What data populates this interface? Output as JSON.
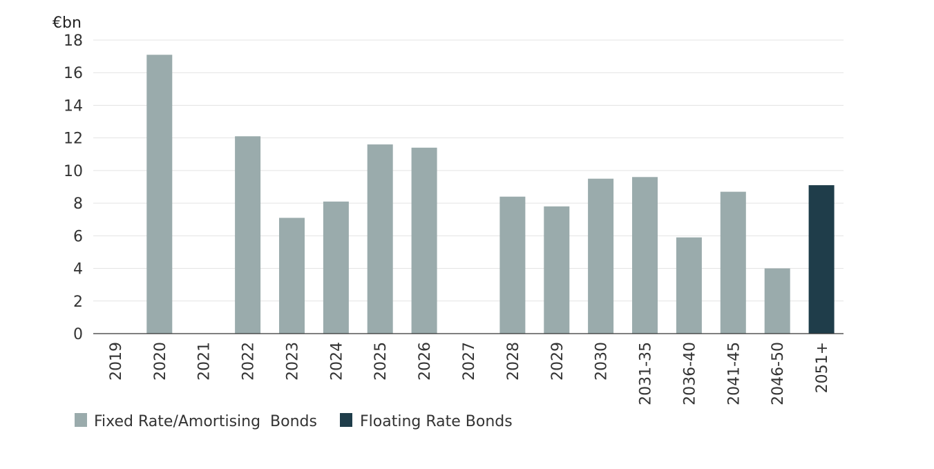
{
  "chart_data": {
    "type": "bar",
    "unit_label": "€bn",
    "ylim": [
      0,
      18
    ],
    "yticks": [
      0,
      2,
      4,
      6,
      8,
      10,
      12,
      14,
      16,
      18
    ],
    "grid": true,
    "legend_position": "bottom-left",
    "categories": [
      "2019",
      "2020",
      "2021",
      "2022",
      "2023",
      "2024",
      "2025",
      "2026",
      "2027",
      "2028",
      "2029",
      "2030",
      "2031-35",
      "2036-40",
      "2041-45",
      "2046-50",
      "2051+"
    ],
    "series": [
      {
        "name": "Fixed Rate/Amortising  Bonds",
        "color": "#9aabac",
        "values": [
          0,
          17.1,
          0,
          12.1,
          7.1,
          8.1,
          11.6,
          11.4,
          0,
          8.4,
          7.8,
          9.5,
          9.6,
          5.9,
          8.7,
          4.0,
          0
        ]
      },
      {
        "name": "Floating Rate Bonds",
        "color": "#1f3d4a",
        "values": [
          0,
          0,
          0,
          0,
          0,
          0,
          0,
          0,
          0,
          0,
          0,
          0,
          0,
          0,
          0,
          0,
          9.1
        ]
      }
    ]
  }
}
